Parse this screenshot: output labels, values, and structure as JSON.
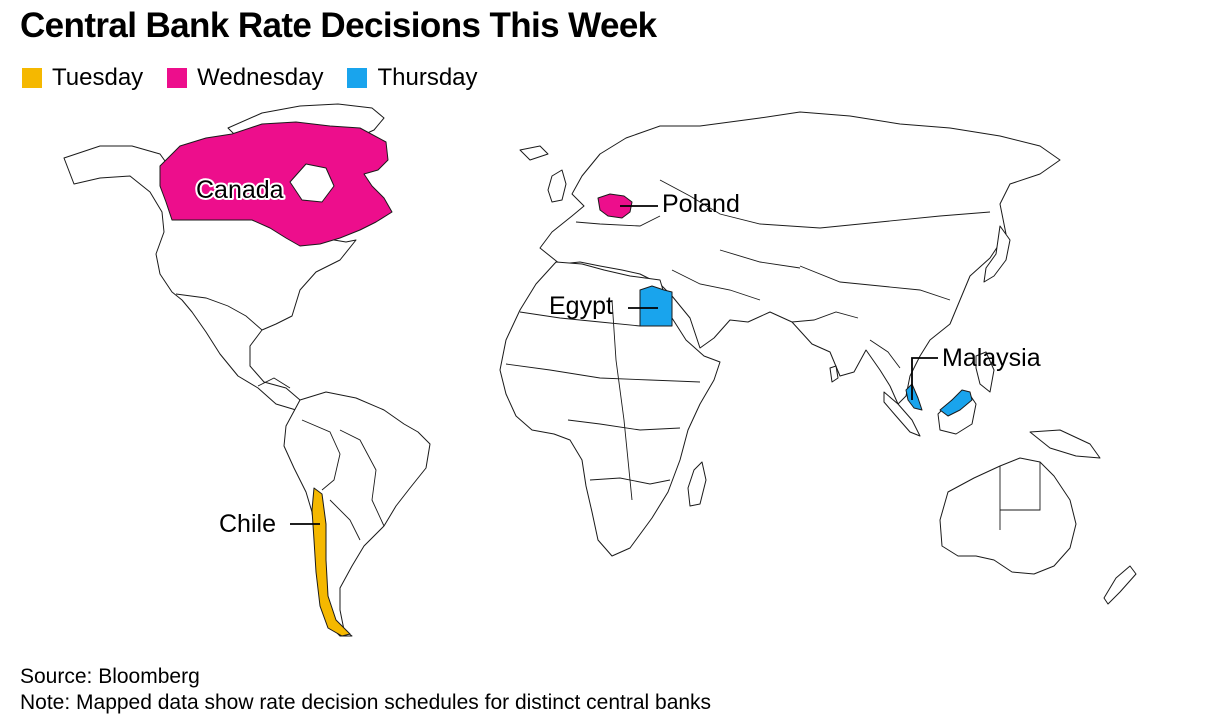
{
  "title": "Central Bank Rate Decisions This Week",
  "legend": [
    {
      "label": "Tuesday",
      "color": "#f5b800"
    },
    {
      "label": "Wednesday",
      "color": "#ed0e8c"
    },
    {
      "label": "Thursday",
      "color": "#19a4ed"
    }
  ],
  "map": {
    "countries": [
      {
        "name": "Canada",
        "day": "Wednesday",
        "color": "#ed0e8c"
      },
      {
        "name": "Poland",
        "day": "Wednesday",
        "color": "#ed0e8c"
      },
      {
        "name": "Egypt",
        "day": "Thursday",
        "color": "#19a4ed"
      },
      {
        "name": "Malaysia",
        "day": "Thursday",
        "color": "#19a4ed"
      },
      {
        "name": "Chile",
        "day": "Tuesday",
        "color": "#f5b800"
      }
    ]
  },
  "footer": {
    "source": "Source: Bloomberg",
    "note": "Note: Mapped data show rate decision schedules for distinct central banks"
  }
}
